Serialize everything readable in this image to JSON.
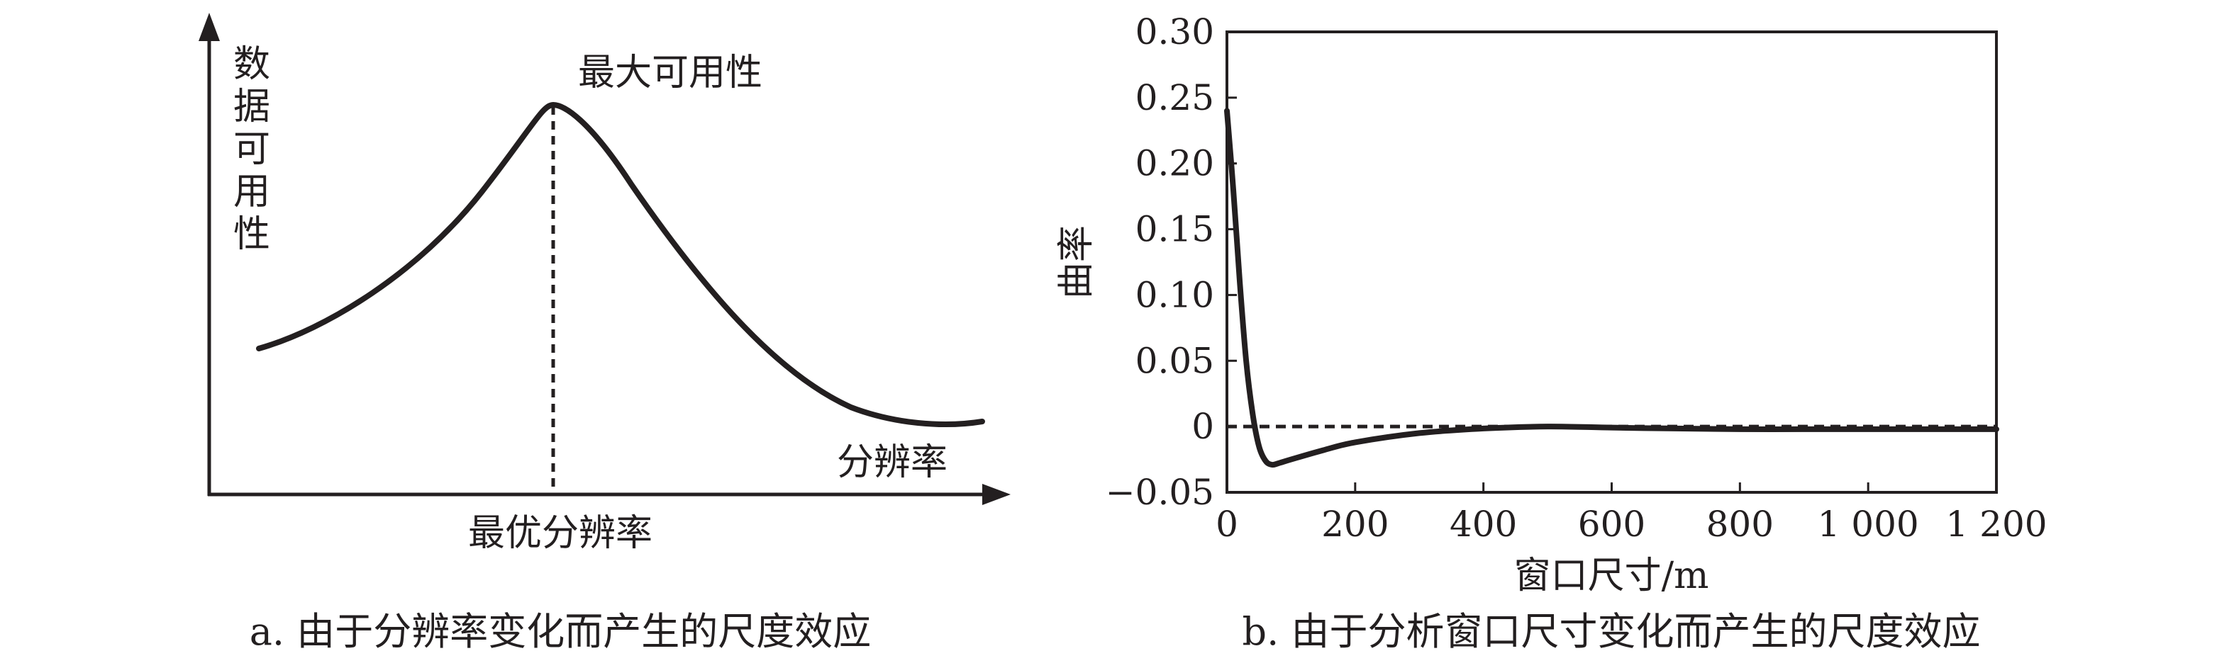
{
  "chart_data": [
    {
      "panel": "a",
      "type": "line",
      "caption": "a. 由于分辨率变化而产生的尺度效应",
      "ylabel": "数据可用性",
      "xlabel": "分辨率",
      "peak_label": "最大可用性",
      "optimum_label": "最优分辨率",
      "curve_shape": "asymmetric-bell",
      "x_ticks": [],
      "y_ticks": []
    },
    {
      "panel": "b",
      "type": "line",
      "caption": "b. 由于分析窗口尺寸变化而产生的尺度效应",
      "xlabel": "窗口尺寸/m",
      "ylabel": "曲率",
      "xlim": [
        0,
        1200
      ],
      "ylim": [
        -0.05,
        0.3
      ],
      "x_ticks": [
        {
          "value": 0,
          "label": "0"
        },
        {
          "value": 200,
          "label": "200"
        },
        {
          "value": 400,
          "label": "400"
        },
        {
          "value": 600,
          "label": "600"
        },
        {
          "value": 800,
          "label": "800"
        },
        {
          "value": 1000,
          "label": "1 000"
        },
        {
          "value": 1200,
          "label": "1 200"
        }
      ],
      "y_ticks": [
        {
          "value": 0.3,
          "label": "0.30"
        },
        {
          "value": 0.25,
          "label": "0.25"
        },
        {
          "value": 0.2,
          "label": "0.20"
        },
        {
          "value": 0.15,
          "label": "0.15"
        },
        {
          "value": 0.1,
          "label": "0.10"
        },
        {
          "value": 0.05,
          "label": "0.05"
        },
        {
          "value": 0,
          "label": "0"
        },
        {
          "value": -0.05,
          "label": "−0.05"
        }
      ],
      "reference_line": {
        "y": 0,
        "style": "dashed"
      },
      "series": [
        {
          "x": [
            0,
            10,
            20,
            30,
            40,
            50,
            60,
            70,
            80,
            100,
            150,
            200,
            300,
            400,
            500,
            600,
            700,
            800,
            900,
            1000,
            1100,
            1200
          ],
          "y": [
            0.24,
            0.18,
            0.11,
            0.05,
            0.01,
            -0.015,
            -0.026,
            -0.029,
            -0.028,
            -0.025,
            -0.018,
            -0.012,
            -0.005,
            -0.0015,
            0.0,
            -0.0008,
            -0.0015,
            -0.002,
            -0.002,
            -0.002,
            -0.002,
            -0.002
          ]
        }
      ]
    }
  ]
}
